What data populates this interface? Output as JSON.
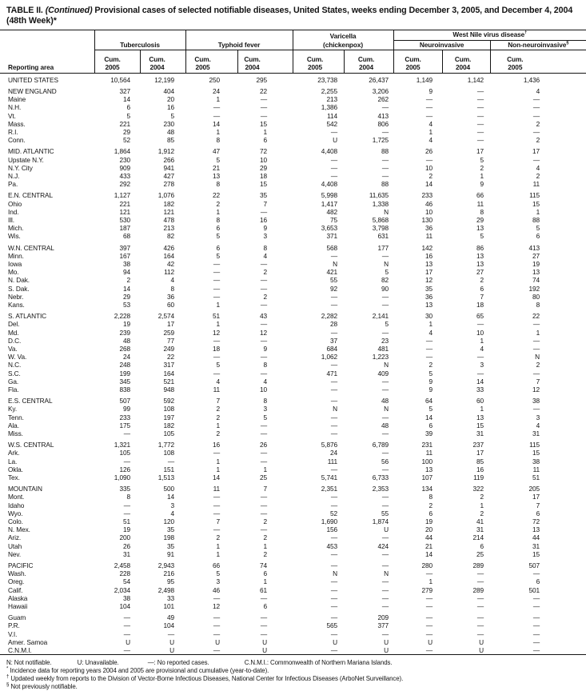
{
  "title": {
    "table_label": "TABLE II.",
    "continued": "(Continued)",
    "text": "Provisional cases of selected notifiable diseases, United States, weeks ending December 3, 2005, and December 4, 2004 (48th Week)*"
  },
  "header": {
    "reporting_area": "Reporting area",
    "cum": "Cum.",
    "year_2005": "2005",
    "year_2004": "2004",
    "groups": {
      "tuberculosis": "Tuberculosis",
      "typhoid_fever": "Typhoid fever",
      "varicella_line1": "Varicella",
      "varicella_line2": "(chickenpox)",
      "west_nile": "West Nile virus disease",
      "west_nile_sup": "†",
      "neuroinvasive": "Neuroinvasive",
      "non_neuroinvasive": "Non-neuroinvasive",
      "non_neuroinvasive_sup": "§"
    }
  },
  "rows": [
    {
      "area": "UNITED STATES",
      "type": "total",
      "gap": false,
      "values": [
        "10,564",
        "12,199",
        "250",
        "295",
        "23,738",
        "26,437",
        "1,149",
        "1,142",
        "1,436"
      ]
    },
    {
      "area": "NEW ENGLAND",
      "type": "section",
      "gap": true,
      "values": [
        "327",
        "404",
        "24",
        "22",
        "2,255",
        "3,206",
        "9",
        "—",
        "4"
      ]
    },
    {
      "area": "Maine",
      "type": "state",
      "gap": false,
      "values": [
        "14",
        "20",
        "1",
        "—",
        "213",
        "262",
        "—",
        "—",
        "—"
      ]
    },
    {
      "area": "N.H.",
      "type": "state",
      "gap": false,
      "values": [
        "6",
        "16",
        "—",
        "—",
        "1,386",
        "—",
        "—",
        "—",
        "—"
      ]
    },
    {
      "area": "Vt.",
      "type": "state",
      "gap": false,
      "values": [
        "5",
        "5",
        "—",
        "—",
        "114",
        "413",
        "—",
        "—",
        "—"
      ]
    },
    {
      "area": "Mass.",
      "type": "state",
      "gap": false,
      "values": [
        "221",
        "230",
        "14",
        "15",
        "542",
        "806",
        "4",
        "—",
        "2"
      ]
    },
    {
      "area": "R.I.",
      "type": "state",
      "gap": false,
      "values": [
        "29",
        "48",
        "1",
        "1",
        "—",
        "—",
        "1",
        "—",
        "—"
      ]
    },
    {
      "area": "Conn.",
      "type": "state",
      "gap": false,
      "values": [
        "52",
        "85",
        "8",
        "6",
        "U",
        "1,725",
        "4",
        "—",
        "2"
      ]
    },
    {
      "area": "MID. ATLANTIC",
      "type": "section",
      "gap": true,
      "values": [
        "1,864",
        "1,912",
        "47",
        "72",
        "4,408",
        "88",
        "26",
        "17",
        "17"
      ]
    },
    {
      "area": "Upstate N.Y.",
      "type": "state",
      "gap": false,
      "values": [
        "230",
        "266",
        "5",
        "10",
        "—",
        "—",
        "—",
        "5",
        "—"
      ]
    },
    {
      "area": "N.Y. City",
      "type": "state",
      "gap": false,
      "values": [
        "909",
        "941",
        "21",
        "29",
        "—",
        "—",
        "10",
        "2",
        "4"
      ]
    },
    {
      "area": "N.J.",
      "type": "state",
      "gap": false,
      "values": [
        "433",
        "427",
        "13",
        "18",
        "—",
        "—",
        "2",
        "1",
        "2"
      ]
    },
    {
      "area": "Pa.",
      "type": "state",
      "gap": false,
      "values": [
        "292",
        "278",
        "8",
        "15",
        "4,408",
        "88",
        "14",
        "9",
        "11"
      ]
    },
    {
      "area": "E.N. CENTRAL",
      "type": "section",
      "gap": true,
      "values": [
        "1,127",
        "1,076",
        "22",
        "35",
        "5,998",
        "11,635",
        "233",
        "66",
        "115"
      ]
    },
    {
      "area": "Ohio",
      "type": "state",
      "gap": false,
      "values": [
        "221",
        "182",
        "2",
        "7",
        "1,417",
        "1,338",
        "46",
        "11",
        "15"
      ]
    },
    {
      "area": "Ind.",
      "type": "state",
      "gap": false,
      "values": [
        "121",
        "121",
        "1",
        "—",
        "482",
        "N",
        "10",
        "8",
        "1"
      ]
    },
    {
      "area": "Ill.",
      "type": "state",
      "gap": false,
      "values": [
        "530",
        "478",
        "8",
        "16",
        "75",
        "5,868",
        "130",
        "29",
        "88"
      ]
    },
    {
      "area": "Mich.",
      "type": "state",
      "gap": false,
      "values": [
        "187",
        "213",
        "6",
        "9",
        "3,653",
        "3,798",
        "36",
        "13",
        "5"
      ]
    },
    {
      "area": "Wis.",
      "type": "state",
      "gap": false,
      "values": [
        "68",
        "82",
        "5",
        "3",
        "371",
        "631",
        "11",
        "5",
        "6"
      ]
    },
    {
      "area": "W.N. CENTRAL",
      "type": "section",
      "gap": true,
      "values": [
        "397",
        "426",
        "6",
        "8",
        "568",
        "177",
        "142",
        "86",
        "413"
      ]
    },
    {
      "area": "Minn.",
      "type": "state",
      "gap": false,
      "values": [
        "167",
        "164",
        "5",
        "4",
        "—",
        "—",
        "16",
        "13",
        "27"
      ]
    },
    {
      "area": "Iowa",
      "type": "state",
      "gap": false,
      "values": [
        "38",
        "42",
        "—",
        "—",
        "N",
        "N",
        "13",
        "13",
        "19"
      ]
    },
    {
      "area": "Mo.",
      "type": "state",
      "gap": false,
      "values": [
        "94",
        "112",
        "—",
        "2",
        "421",
        "5",
        "17",
        "27",
        "13"
      ]
    },
    {
      "area": "N. Dak.",
      "type": "state",
      "gap": false,
      "values": [
        "2",
        "4",
        "—",
        "—",
        "55",
        "82",
        "12",
        "2",
        "74"
      ]
    },
    {
      "area": "S. Dak.",
      "type": "state",
      "gap": false,
      "values": [
        "14",
        "8",
        "—",
        "—",
        "92",
        "90",
        "35",
        "6",
        "192"
      ]
    },
    {
      "area": "Nebr.",
      "type": "state",
      "gap": false,
      "values": [
        "29",
        "36",
        "—",
        "2",
        "—",
        "—",
        "36",
        "7",
        "80"
      ]
    },
    {
      "area": "Kans.",
      "type": "state",
      "gap": false,
      "values": [
        "53",
        "60",
        "1",
        "—",
        "—",
        "—",
        "13",
        "18",
        "8"
      ]
    },
    {
      "area": "S. ATLANTIC",
      "type": "section",
      "gap": true,
      "values": [
        "2,228",
        "2,574",
        "51",
        "43",
        "2,282",
        "2,141",
        "30",
        "65",
        "22"
      ]
    },
    {
      "area": "Del.",
      "type": "state",
      "gap": false,
      "values": [
        "19",
        "17",
        "1",
        "—",
        "28",
        "5",
        "1",
        "—",
        "—"
      ]
    },
    {
      "area": "Md.",
      "type": "state",
      "gap": false,
      "values": [
        "239",
        "259",
        "12",
        "12",
        "—",
        "—",
        "4",
        "10",
        "1"
      ]
    },
    {
      "area": "D.C.",
      "type": "state",
      "gap": false,
      "values": [
        "48",
        "77",
        "—",
        "—",
        "37",
        "23",
        "—",
        "1",
        "—"
      ]
    },
    {
      "area": "Va.",
      "type": "state",
      "gap": false,
      "values": [
        "268",
        "249",
        "18",
        "9",
        "684",
        "481",
        "—",
        "4",
        "—"
      ]
    },
    {
      "area": "W. Va.",
      "type": "state",
      "gap": false,
      "values": [
        "24",
        "22",
        "—",
        "—",
        "1,062",
        "1,223",
        "—",
        "—",
        "N"
      ]
    },
    {
      "area": "N.C.",
      "type": "state",
      "gap": false,
      "values": [
        "248",
        "317",
        "5",
        "8",
        "—",
        "N",
        "2",
        "3",
        "2"
      ]
    },
    {
      "area": "S.C.",
      "type": "state",
      "gap": false,
      "values": [
        "199",
        "164",
        "—",
        "—",
        "471",
        "409",
        "5",
        "—",
        "—"
      ]
    },
    {
      "area": "Ga.",
      "type": "state",
      "gap": false,
      "values": [
        "345",
        "521",
        "4",
        "4",
        "—",
        "—",
        "9",
        "14",
        "7"
      ]
    },
    {
      "area": "Fla.",
      "type": "state",
      "gap": false,
      "values": [
        "838",
        "948",
        "11",
        "10",
        "—",
        "—",
        "9",
        "33",
        "12"
      ]
    },
    {
      "area": "E.S. CENTRAL",
      "type": "section",
      "gap": true,
      "values": [
        "507",
        "592",
        "7",
        "8",
        "—",
        "48",
        "64",
        "60",
        "38"
      ]
    },
    {
      "area": "Ky.",
      "type": "state",
      "gap": false,
      "values": [
        "99",
        "108",
        "2",
        "3",
        "N",
        "N",
        "5",
        "1",
        "—"
      ]
    },
    {
      "area": "Tenn.",
      "type": "state",
      "gap": false,
      "values": [
        "233",
        "197",
        "2",
        "5",
        "—",
        "—",
        "14",
        "13",
        "3"
      ]
    },
    {
      "area": "Ala.",
      "type": "state",
      "gap": false,
      "values": [
        "175",
        "182",
        "1",
        "—",
        "—",
        "48",
        "6",
        "15",
        "4"
      ]
    },
    {
      "area": "Miss.",
      "type": "state",
      "gap": false,
      "values": [
        "—",
        "105",
        "2",
        "—",
        "—",
        "—",
        "39",
        "31",
        "31"
      ]
    },
    {
      "area": "W.S. CENTRAL",
      "type": "section",
      "gap": true,
      "values": [
        "1,321",
        "1,772",
        "16",
        "26",
        "5,876",
        "6,789",
        "231",
        "237",
        "115"
      ]
    },
    {
      "area": "Ark.",
      "type": "state",
      "gap": false,
      "values": [
        "105",
        "108",
        "—",
        "—",
        "24",
        "—",
        "11",
        "17",
        "15"
      ]
    },
    {
      "area": "La.",
      "type": "state",
      "gap": false,
      "values": [
        "—",
        "—",
        "1",
        "—",
        "111",
        "56",
        "100",
        "85",
        "38"
      ]
    },
    {
      "area": "Okla.",
      "type": "state",
      "gap": false,
      "values": [
        "126",
        "151",
        "1",
        "1",
        "—",
        "—",
        "13",
        "16",
        "11"
      ]
    },
    {
      "area": "Tex.",
      "type": "state",
      "gap": false,
      "values": [
        "1,090",
        "1,513",
        "14",
        "25",
        "5,741",
        "6,733",
        "107",
        "119",
        "51"
      ]
    },
    {
      "area": "MOUNTAIN",
      "type": "section",
      "gap": true,
      "values": [
        "335",
        "500",
        "11",
        "7",
        "2,351",
        "2,353",
        "134",
        "322",
        "205"
      ]
    },
    {
      "area": "Mont.",
      "type": "state",
      "gap": false,
      "values": [
        "8",
        "14",
        "—",
        "—",
        "—",
        "—",
        "8",
        "2",
        "17"
      ]
    },
    {
      "area": "Idaho",
      "type": "state",
      "gap": false,
      "values": [
        "—",
        "3",
        "—",
        "—",
        "—",
        "—",
        "2",
        "1",
        "7"
      ]
    },
    {
      "area": "Wyo.",
      "type": "state",
      "gap": false,
      "values": [
        "—",
        "4",
        "—",
        "—",
        "52",
        "55",
        "6",
        "2",
        "6"
      ]
    },
    {
      "area": "Colo.",
      "type": "state",
      "gap": false,
      "values": [
        "51",
        "120",
        "7",
        "2",
        "1,690",
        "1,874",
        "19",
        "41",
        "72"
      ]
    },
    {
      "area": "N. Mex.",
      "type": "state",
      "gap": false,
      "values": [
        "19",
        "35",
        "—",
        "—",
        "156",
        "U",
        "20",
        "31",
        "13"
      ]
    },
    {
      "area": "Ariz.",
      "type": "state",
      "gap": false,
      "values": [
        "200",
        "198",
        "2",
        "2",
        "—",
        "—",
        "44",
        "214",
        "44"
      ]
    },
    {
      "area": "Utah",
      "type": "state",
      "gap": false,
      "values": [
        "26",
        "35",
        "1",
        "1",
        "453",
        "424",
        "21",
        "6",
        "31"
      ]
    },
    {
      "area": "Nev.",
      "type": "state",
      "gap": false,
      "values": [
        "31",
        "91",
        "1",
        "2",
        "—",
        "—",
        "14",
        "25",
        "15"
      ]
    },
    {
      "area": "PACIFIC",
      "type": "section",
      "gap": true,
      "values": [
        "2,458",
        "2,943",
        "66",
        "74",
        "—",
        "—",
        "280",
        "289",
        "507"
      ]
    },
    {
      "area": "Wash.",
      "type": "state",
      "gap": false,
      "values": [
        "228",
        "216",
        "5",
        "6",
        "N",
        "N",
        "—",
        "—",
        "—"
      ]
    },
    {
      "area": "Oreg.",
      "type": "state",
      "gap": false,
      "values": [
        "54",
        "95",
        "3",
        "1",
        "—",
        "—",
        "1",
        "—",
        "6"
      ]
    },
    {
      "area": "Calif.",
      "type": "state",
      "gap": false,
      "values": [
        "2,034",
        "2,498",
        "46",
        "61",
        "—",
        "—",
        "279",
        "289",
        "501"
      ]
    },
    {
      "area": "Alaska",
      "type": "state",
      "gap": false,
      "values": [
        "38",
        "33",
        "—",
        "—",
        "—",
        "—",
        "—",
        "—",
        "—"
      ]
    },
    {
      "area": "Hawaii",
      "type": "state",
      "gap": false,
      "values": [
        "104",
        "101",
        "12",
        "6",
        "—",
        "—",
        "—",
        "—",
        "—"
      ]
    },
    {
      "area": "Guam",
      "type": "territory",
      "gap": true,
      "values": [
        "—",
        "49",
        "—",
        "—",
        "—",
        "209",
        "—",
        "—",
        "—"
      ]
    },
    {
      "area": "P.R.",
      "type": "territory",
      "gap": false,
      "values": [
        "—",
        "104",
        "—",
        "—",
        "565",
        "377",
        "—",
        "—",
        "—"
      ]
    },
    {
      "area": "V.I.",
      "type": "territory",
      "gap": false,
      "values": [
        "—",
        "—",
        "—",
        "—",
        "—",
        "—",
        "—",
        "—",
        "—"
      ]
    },
    {
      "area": "Amer. Samoa",
      "type": "territory",
      "gap": false,
      "values": [
        "U",
        "U",
        "U",
        "U",
        "U",
        "U",
        "U",
        "U",
        "—"
      ]
    },
    {
      "area": "C.N.M.I.",
      "type": "territory",
      "gap": false,
      "values": [
        "—",
        "U",
        "—",
        "U",
        "—",
        "U",
        "—",
        "U",
        "—"
      ]
    }
  ],
  "footnotes": {
    "legend": [
      "N: Not notifiable.",
      "U: Unavailable.",
      "—: No reported cases.",
      "C.N.M.I.: Commonwealth of Northern Mariana Islands."
    ],
    "star_sym": "*",
    "star": "Incidence data for reporting years 2004 and 2005 are provisional and cumulative (year-to-date).",
    "dagger_sym": "†",
    "dagger": "Updated weekly from reports to the Division of Vector-Borne Infectious Diseases, National Center for Infectious Diseases (ArboNet Surveillance).",
    "section_sym": "§",
    "section": "Not previously notifiable."
  }
}
